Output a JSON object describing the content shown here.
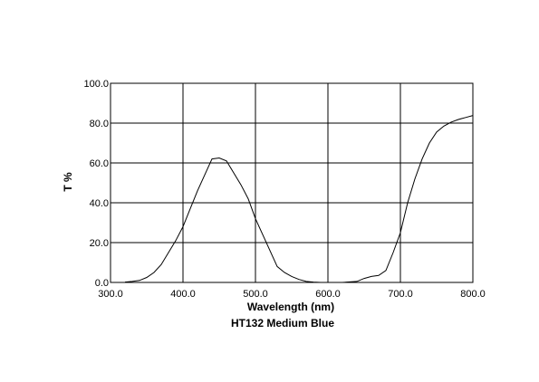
{
  "chart_data": {
    "type": "line",
    "title": "HT132 Medium Blue",
    "xlabel": "Wavelength (nm)",
    "ylabel": "T %",
    "xlim": [
      300,
      800
    ],
    "ylim": [
      0,
      100
    ],
    "x_ticks": [
      "300.0",
      "400.0",
      "500.0",
      "600.0",
      "700.0",
      "800.0"
    ],
    "y_ticks": [
      "0.0",
      "20.0",
      "40.0",
      "60.0",
      "80.0",
      "100.0"
    ],
    "grid": true,
    "line_color": "#000000",
    "series": [
      {
        "x": [
          320,
          330,
          340,
          350,
          360,
          370,
          380,
          390,
          400,
          410,
          420,
          430,
          440,
          450,
          460,
          470,
          480,
          490,
          500,
          510,
          520,
          530,
          540,
          550,
          560,
          570,
          580,
          590,
          600,
          620,
          640,
          650,
          660,
          670,
          680,
          690,
          700,
          710,
          720,
          730,
          740,
          750,
          760,
          770,
          780,
          790,
          800
        ],
        "y": [
          0.2,
          0.5,
          1.0,
          2.5,
          5.0,
          9.0,
          15.0,
          21.0,
          28.0,
          37.0,
          46.0,
          54.0,
          62.0,
          62.5,
          61.0,
          55.0,
          49.0,
          42.0,
          32.0,
          24.0,
          16.0,
          8.0,
          5.0,
          3.0,
          1.5,
          0.5,
          0.2,
          0.0,
          0.0,
          0.0,
          0.5,
          2.0,
          3.0,
          3.5,
          6.0,
          15.0,
          25.0,
          40.0,
          52.0,
          62.0,
          70.0,
          75.5,
          78.5,
          80.5,
          81.8,
          82.8,
          83.8
        ]
      }
    ]
  }
}
